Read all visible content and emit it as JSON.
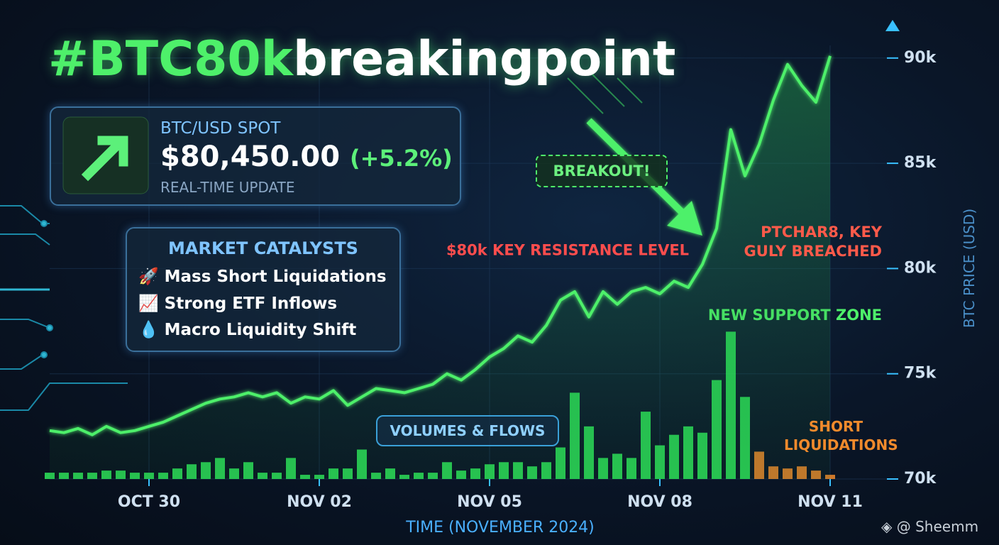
{
  "chart_data": {
    "type": "line",
    "title_parts": [
      "#BTC80k",
      "breakingpoint"
    ],
    "title_colors": [
      "#4ef06a",
      "#ffffff"
    ],
    "spot": {
      "label": "BTC/USD SPOT",
      "price": "$80,450.00",
      "change": "(+5.2%)",
      "note": "REAL-TIME UPDATE"
    },
    "catalysts": {
      "title": "MARKET CATALYSTS",
      "items": [
        "🚀 Mass Short Liquidations",
        "📈 Strong ETF Inflows",
        "💧 Macro Liquidity Shift"
      ]
    },
    "breakout_label": "BREAKOUT!",
    "reference_lines": [
      {
        "value": 80,
        "label": "$80k KEY RESISTANCE LEVEL",
        "color": "#ff4d4d",
        "dashed": true
      },
      {
        "value": 78.5,
        "label": "NEW SUPPORT ZONE",
        "color": "#4ef06a",
        "dashed": false
      }
    ],
    "breach_note": [
      "PTCHAR8, KEY",
      "GULY BREACHED"
    ],
    "x_label": "TIME (NOVEMBER 2024)",
    "y_label": "BTC PRICE (USD)",
    "watermark": "@ Sheemm",
    "categories": [
      null,
      null,
      null,
      null,
      null,
      null,
      null,
      "OCT 30",
      null,
      null,
      null,
      null,
      null,
      null,
      null,
      null,
      null,
      null,
      null,
      "NOV 02",
      null,
      null,
      null,
      null,
      null,
      null,
      null,
      null,
      null,
      null,
      null,
      "NOV 05",
      null,
      null,
      null,
      null,
      null,
      null,
      null,
      null,
      null,
      null,
      null,
      "NOV 08",
      null,
      null,
      null,
      null,
      null,
      null,
      null,
      null,
      null,
      null,
      null,
      "NOV 11"
    ],
    "ylim": [
      70,
      90.6
    ],
    "yticks": [
      {
        "value": 70,
        "label": "70k"
      },
      {
        "value": 75,
        "label": "75k"
      },
      {
        "value": 80,
        "label": "80k"
      },
      {
        "value": 85,
        "label": "85k"
      },
      {
        "value": 90,
        "label": "90k"
      }
    ],
    "series": [
      {
        "color": "#4ef06a",
        "values": [
          72.3,
          72.2,
          72.4,
          72.1,
          72.5,
          72.2,
          72.3,
          72.5,
          72.7,
          73.0,
          73.3,
          73.6,
          73.8,
          73.9,
          74.1,
          73.9,
          74.1,
          73.6,
          73.9,
          73.8,
          74.2,
          73.5,
          73.9,
          74.3,
          74.2,
          74.1,
          74.3,
          74.5,
          75.0,
          74.7,
          75.2,
          75.8,
          76.2,
          76.8,
          76.5,
          77.3,
          78.5,
          78.9,
          77.7,
          78.9,
          78.3,
          78.9,
          79.1,
          78.8,
          79.4,
          79.1,
          80.2,
          81.9,
          86.6,
          84.4,
          85.9,
          88.0,
          89.7,
          88.7,
          87.9,
          90.1
        ]
      }
    ],
    "bar_series": [
      {
        "name": "VOLUMES & FLOWS",
        "color": "#2ee85a",
        "values": [
          70.3,
          70.3,
          70.3,
          70.3,
          70.4,
          70.4,
          70.3,
          70.3,
          70.3,
          70.5,
          70.7,
          70.8,
          71.0,
          70.5,
          70.8,
          70.3,
          70.3,
          71.0,
          70.2,
          70.2,
          70.5,
          70.5,
          71.4,
          70.3,
          70.5,
          70.2,
          70.3,
          70.3,
          70.8,
          70.4,
          70.5,
          70.7,
          70.8,
          70.8,
          70.6,
          70.8,
          71.5,
          74.1,
          72.5,
          71.0,
          71.2,
          71.0,
          73.2,
          71.6,
          72.1,
          72.5,
          72.2,
          74.7,
          77.0,
          73.9,
          null,
          null,
          null,
          null,
          null,
          null
        ]
      },
      {
        "name": "SHORT LIQUIDATIONS",
        "color": "#f08a2c",
        "values": [
          null,
          null,
          null,
          null,
          null,
          null,
          null,
          null,
          null,
          null,
          null,
          null,
          null,
          null,
          null,
          null,
          null,
          null,
          null,
          null,
          null,
          null,
          null,
          null,
          null,
          null,
          null,
          null,
          null,
          null,
          null,
          null,
          null,
          null,
          null,
          null,
          null,
          null,
          null,
          null,
          null,
          null,
          null,
          null,
          null,
          null,
          null,
          null,
          null,
          null,
          71.3,
          70.6,
          70.5,
          70.6,
          70.4,
          70.2
        ]
      }
    ],
    "grid": true
  }
}
